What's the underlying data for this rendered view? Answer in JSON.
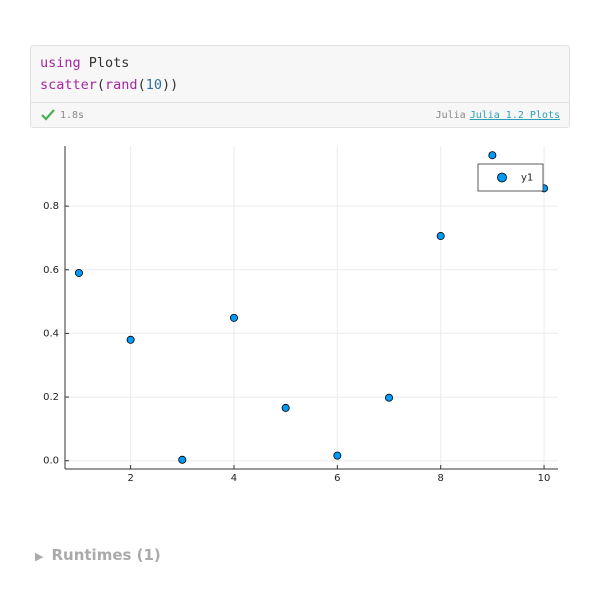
{
  "cell": {
    "code": [
      [
        {
          "text": "using",
          "color": "#a626a4"
        },
        {
          "text": " Plots",
          "color": "#333333"
        }
      ],
      [
        {
          "text": "scatter",
          "color": "#a626a4"
        },
        {
          "text": "(",
          "color": "#333333"
        },
        {
          "text": "rand",
          "color": "#a626a4"
        },
        {
          "text": "(",
          "color": "#333333"
        },
        {
          "text": "10",
          "color": "#2f6f9f"
        },
        {
          "text": "))",
          "color": "#333333"
        }
      ]
    ],
    "duration": "1.8s",
    "language": "Julia",
    "environment": "Julia 1.2 Plots"
  },
  "chart_data": {
    "type": "scatter",
    "x": [
      1,
      2,
      3,
      4,
      5,
      6,
      7,
      8,
      9,
      10
    ],
    "series": [
      {
        "name": "y1",
        "color": "#009af9",
        "values": [
          0.59,
          0.38,
          0.003,
          0.449,
          0.166,
          0.016,
          0.198,
          0.706,
          0.96,
          0.856
        ]
      }
    ],
    "xlim": [
      0.73,
      10.27
    ],
    "ylim": [
      -0.026,
      0.989
    ],
    "xticks": [
      2,
      4,
      6,
      8,
      10
    ],
    "yticks": [
      {
        "value": 0,
        "label": "0.0"
      },
      0.2,
      0.4,
      0.6,
      0.8
    ],
    "grid": true,
    "legend": "topright"
  },
  "runtimes": "Runtimes (1)"
}
